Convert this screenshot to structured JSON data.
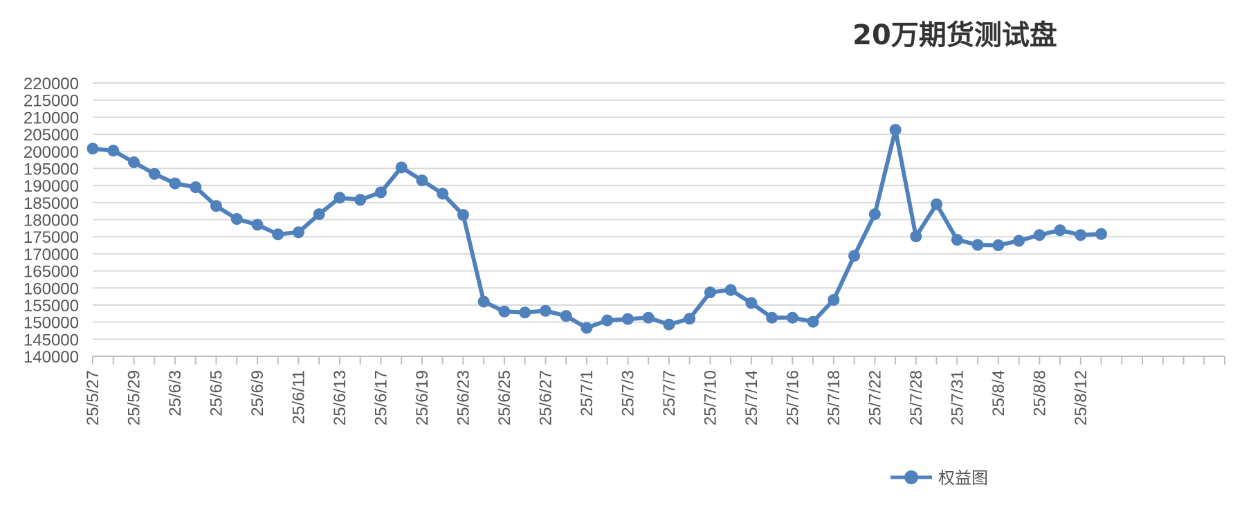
{
  "chart_data": {
    "type": "line",
    "title": "20万期货测试盘",
    "xlabel": "",
    "ylabel": "",
    "ylim": [
      140000,
      220000
    ],
    "ytick_step": 5000,
    "grid": true,
    "legend_position": "bottom-right",
    "x_slots": 55,
    "tick_labels": [
      "25/5/27",
      "25/5/29",
      "25/6/3",
      "25/6/5",
      "25/6/9",
      "25/6/11",
      "25/6/13",
      "25/6/17",
      "25/6/19",
      "25/6/23",
      "25/6/25",
      "25/6/27",
      "25/7/1",
      "25/7/3",
      "25/7/7",
      "25/7/10",
      "25/7/14",
      "25/7/16",
      "25/7/18",
      "25/7/22",
      "25/7/28",
      "25/7/31",
      "25/8/4",
      "25/8/8",
      "25/8/12"
    ],
    "series": [
      {
        "name": "权益图",
        "color": "#4f81bd",
        "values": [
          200800,
          200200,
          196800,
          193400,
          190600,
          189500,
          184000,
          180200,
          178500,
          175700,
          176300,
          181600,
          186400,
          185800,
          188000,
          195300,
          191500,
          187600,
          181400,
          156000,
          153100,
          152800,
          153300,
          151800,
          148300,
          150500,
          150900,
          151300,
          149300,
          151000,
          158700,
          159400,
          155600,
          151300,
          151300,
          150100,
          156500,
          169400,
          181600,
          206300,
          175100,
          184500,
          174100,
          172600,
          172500,
          173800,
          175500,
          176900,
          175500,
          175800
        ]
      }
    ]
  }
}
